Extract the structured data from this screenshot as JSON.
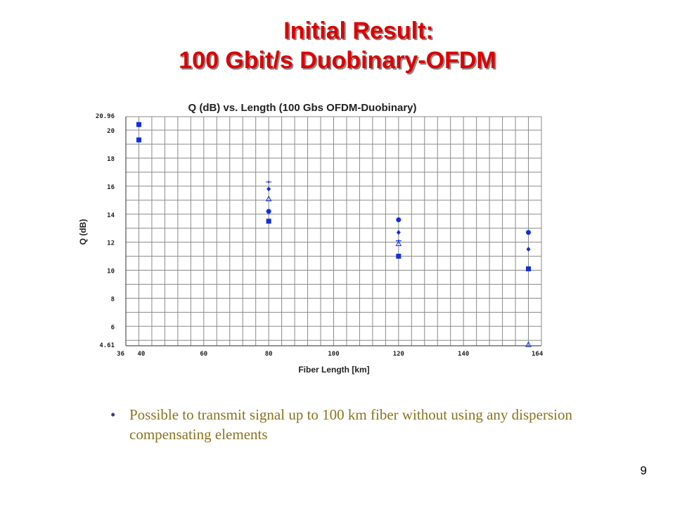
{
  "slide": {
    "title_line1": "Initial Result:",
    "title_line2": "100 Gbit/s Duobinary-OFDM",
    "bullet": "Possible to transmit signal up to 100 km fiber without using any dispersion compensating elements",
    "bullet_symbol": "•",
    "page_number": "9"
  },
  "colors": {
    "title": "#dd0000",
    "markers": "#1030e0",
    "bullet_text": "#8b7320",
    "grid": "#8a8a8a"
  },
  "chart_data": {
    "type": "scatter",
    "title": "Q (dB) vs. Length (100 Gbs OFDM-Duobinary)",
    "xlabel": "Fiber Length [km]",
    "ylabel": "Q (dB)",
    "xlim": [
      36,
      164
    ],
    "ylim": [
      4.61,
      20.96
    ],
    "x_ticks": [
      "36",
      "40",
      "60",
      "80",
      "100",
      "120",
      "140",
      "164"
    ],
    "y_ticks": [
      "4.61",
      "6",
      "8",
      "10",
      "12",
      "14",
      "16",
      "18",
      "20",
      "20.96"
    ],
    "grid": true,
    "series": [
      {
        "marker": "square",
        "points": [
          [
            40,
            20.4
          ],
          [
            40,
            19.3
          ],
          [
            80,
            13.5
          ],
          [
            120,
            11.0
          ],
          [
            160,
            10.1
          ]
        ]
      },
      {
        "marker": "circle",
        "points": [
          [
            80,
            14.2
          ],
          [
            120,
            13.6
          ],
          [
            160,
            12.7
          ]
        ]
      },
      {
        "marker": "diamond",
        "points": [
          [
            80,
            15.8
          ],
          [
            120,
            12.7
          ],
          [
            160,
            11.5
          ]
        ]
      },
      {
        "marker": "triangle",
        "points": [
          [
            80,
            15.1
          ],
          [
            120,
            11.9
          ],
          [
            160,
            4.7
          ]
        ]
      },
      {
        "marker": "plus",
        "points": [
          [
            80,
            16.3
          ],
          [
            120,
            12.1
          ]
        ]
      }
    ]
  }
}
